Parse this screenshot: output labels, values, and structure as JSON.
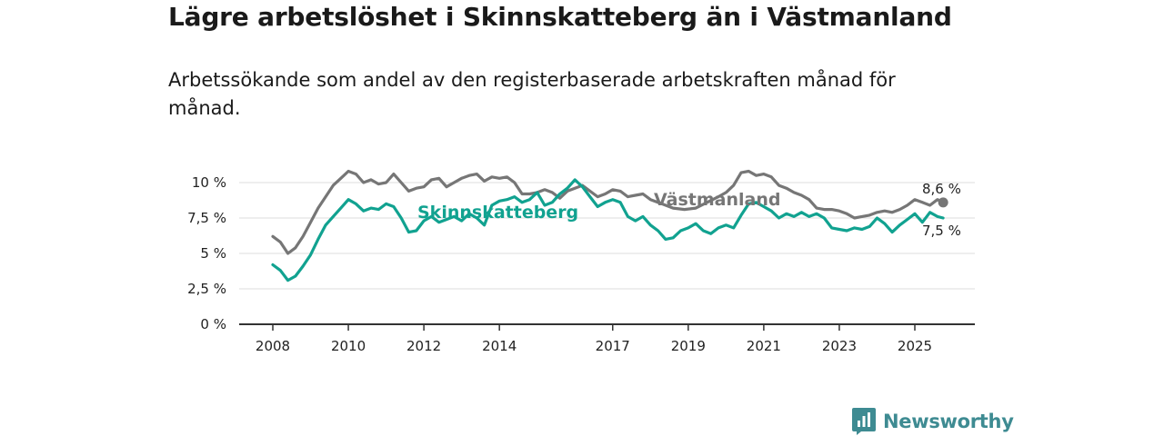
{
  "header": {
    "title": "Lägre arbetslöshet i Skinnskatteberg än i Västmanland",
    "subtitle": "Arbetssökande som andel av den registerbaserade arbetskraften månad för månad."
  },
  "brand": {
    "name": "Newsworthy",
    "icon": "newsworthy-logo-icon"
  },
  "colors": {
    "skinnskatteberg": "#11a290",
    "vastmanland": "#767676",
    "grid": "#dcdcdc",
    "axis": "#333333"
  },
  "chart_data": {
    "type": "line",
    "title": "Lägre arbetslöshet i Skinnskatteberg än i Västmanland",
    "xlabel": "",
    "ylabel": "",
    "xlim": [
      2007.9,
      2025.8
    ],
    "ylim": [
      0,
      10
    ],
    "y_ticks": [
      0,
      2.5,
      5,
      7.5,
      10
    ],
    "y_tick_labels": [
      "0 %",
      "2,5 %",
      "5 %",
      "7,5 %",
      "10 %"
    ],
    "x_ticks": [
      2008,
      2010,
      2012,
      2014,
      2017,
      2019,
      2021,
      2023,
      2025
    ],
    "x_tick_labels": [
      "2008",
      "2010",
      "2012",
      "2014",
      "2017",
      "2019",
      "2021",
      "2023",
      "2025"
    ],
    "series": [
      {
        "name": "Västmanland",
        "end_label": "8,6 %",
        "points": [
          [
            2008.0,
            6.2
          ],
          [
            2008.2,
            5.8
          ],
          [
            2008.4,
            5.0
          ],
          [
            2008.6,
            5.4
          ],
          [
            2008.8,
            6.2
          ],
          [
            2009.0,
            7.2
          ],
          [
            2009.2,
            8.2
          ],
          [
            2009.4,
            9.0
          ],
          [
            2009.6,
            9.8
          ],
          [
            2009.8,
            10.3
          ],
          [
            2010.0,
            10.8
          ],
          [
            2010.2,
            10.6
          ],
          [
            2010.4,
            10.0
          ],
          [
            2010.6,
            10.2
          ],
          [
            2010.8,
            9.9
          ],
          [
            2011.0,
            10.0
          ],
          [
            2011.2,
            10.6
          ],
          [
            2011.4,
            10.0
          ],
          [
            2011.6,
            9.4
          ],
          [
            2011.8,
            9.6
          ],
          [
            2012.0,
            9.7
          ],
          [
            2012.2,
            10.2
          ],
          [
            2012.4,
            10.3
          ],
          [
            2012.6,
            9.7
          ],
          [
            2012.8,
            10.0
          ],
          [
            2013.0,
            10.3
          ],
          [
            2013.2,
            10.5
          ],
          [
            2013.4,
            10.6
          ],
          [
            2013.6,
            10.1
          ],
          [
            2013.8,
            10.4
          ],
          [
            2014.0,
            10.3
          ],
          [
            2014.2,
            10.4
          ],
          [
            2014.4,
            10.0
          ],
          [
            2014.6,
            9.2
          ],
          [
            2014.8,
            9.2
          ],
          [
            2015.0,
            9.3
          ],
          [
            2015.2,
            9.5
          ],
          [
            2015.4,
            9.3
          ],
          [
            2015.6,
            8.9
          ],
          [
            2015.8,
            9.4
          ],
          [
            2016.0,
            9.6
          ],
          [
            2016.2,
            9.8
          ],
          [
            2016.4,
            9.4
          ],
          [
            2016.6,
            9.0
          ],
          [
            2016.8,
            9.2
          ],
          [
            2017.0,
            9.5
          ],
          [
            2017.2,
            9.4
          ],
          [
            2017.4,
            9.0
          ],
          [
            2017.6,
            9.1
          ],
          [
            2017.8,
            9.2
          ],
          [
            2018.0,
            8.8
          ],
          [
            2018.3,
            8.5
          ],
          [
            2018.6,
            8.2
          ],
          [
            2018.9,
            8.1
          ],
          [
            2019.2,
            8.2
          ],
          [
            2019.5,
            8.6
          ],
          [
            2019.8,
            9.0
          ],
          [
            2020.0,
            9.3
          ],
          [
            2020.2,
            9.8
          ],
          [
            2020.4,
            10.7
          ],
          [
            2020.6,
            10.8
          ],
          [
            2020.8,
            10.5
          ],
          [
            2021.0,
            10.6
          ],
          [
            2021.2,
            10.4
          ],
          [
            2021.4,
            9.8
          ],
          [
            2021.6,
            9.6
          ],
          [
            2021.8,
            9.3
          ],
          [
            2022.0,
            9.1
          ],
          [
            2022.2,
            8.8
          ],
          [
            2022.4,
            8.2
          ],
          [
            2022.6,
            8.1
          ],
          [
            2022.8,
            8.1
          ],
          [
            2023.0,
            8.0
          ],
          [
            2023.2,
            7.8
          ],
          [
            2023.4,
            7.5
          ],
          [
            2023.6,
            7.6
          ],
          [
            2023.8,
            7.7
          ],
          [
            2024.0,
            7.9
          ],
          [
            2024.2,
            8.0
          ],
          [
            2024.4,
            7.9
          ],
          [
            2024.6,
            8.1
          ],
          [
            2024.8,
            8.4
          ],
          [
            2025.0,
            8.8
          ],
          [
            2025.2,
            8.6
          ],
          [
            2025.4,
            8.4
          ],
          [
            2025.6,
            8.8
          ],
          [
            2025.75,
            8.6
          ]
        ]
      },
      {
        "name": "Skinnskatteberg",
        "end_label": "7,5 %",
        "points": [
          [
            2008.0,
            4.2
          ],
          [
            2008.2,
            3.8
          ],
          [
            2008.4,
            3.1
          ],
          [
            2008.6,
            3.4
          ],
          [
            2008.8,
            4.1
          ],
          [
            2009.0,
            4.9
          ],
          [
            2009.2,
            6.0
          ],
          [
            2009.4,
            7.0
          ],
          [
            2009.6,
            7.6
          ],
          [
            2009.8,
            8.2
          ],
          [
            2010.0,
            8.8
          ],
          [
            2010.2,
            8.5
          ],
          [
            2010.4,
            8.0
          ],
          [
            2010.6,
            8.2
          ],
          [
            2010.8,
            8.1
          ],
          [
            2011.0,
            8.5
          ],
          [
            2011.2,
            8.3
          ],
          [
            2011.4,
            7.5
          ],
          [
            2011.6,
            6.5
          ],
          [
            2011.8,
            6.6
          ],
          [
            2012.0,
            7.3
          ],
          [
            2012.2,
            7.6
          ],
          [
            2012.4,
            7.2
          ],
          [
            2012.6,
            7.4
          ],
          [
            2012.8,
            7.6
          ],
          [
            2013.0,
            7.3
          ],
          [
            2013.2,
            7.8
          ],
          [
            2013.4,
            7.5
          ],
          [
            2013.6,
            7.0
          ],
          [
            2013.8,
            8.4
          ],
          [
            2014.0,
            8.7
          ],
          [
            2014.2,
            8.8
          ],
          [
            2014.4,
            9.0
          ],
          [
            2014.6,
            8.6
          ],
          [
            2014.8,
            8.8
          ],
          [
            2015.0,
            9.3
          ],
          [
            2015.2,
            8.4
          ],
          [
            2015.4,
            8.6
          ],
          [
            2015.6,
            9.2
          ],
          [
            2015.8,
            9.6
          ],
          [
            2016.0,
            10.2
          ],
          [
            2016.2,
            9.7
          ],
          [
            2016.4,
            9.0
          ],
          [
            2016.6,
            8.3
          ],
          [
            2016.8,
            8.6
          ],
          [
            2017.0,
            8.8
          ],
          [
            2017.2,
            8.6
          ],
          [
            2017.4,
            7.6
          ],
          [
            2017.6,
            7.3
          ],
          [
            2017.8,
            7.6
          ],
          [
            2018.0,
            7.0
          ],
          [
            2018.2,
            6.6
          ],
          [
            2018.4,
            6.0
          ],
          [
            2018.6,
            6.1
          ],
          [
            2018.8,
            6.6
          ],
          [
            2019.0,
            6.8
          ],
          [
            2019.2,
            7.1
          ],
          [
            2019.4,
            6.6
          ],
          [
            2019.6,
            6.4
          ],
          [
            2019.8,
            6.8
          ],
          [
            2020.0,
            7.0
          ],
          [
            2020.2,
            6.8
          ],
          [
            2020.4,
            7.7
          ],
          [
            2020.6,
            8.5
          ],
          [
            2020.8,
            8.6
          ],
          [
            2021.0,
            8.3
          ],
          [
            2021.2,
            8.0
          ],
          [
            2021.4,
            7.5
          ],
          [
            2021.6,
            7.8
          ],
          [
            2021.8,
            7.6
          ],
          [
            2022.0,
            7.9
          ],
          [
            2022.2,
            7.6
          ],
          [
            2022.4,
            7.8
          ],
          [
            2022.6,
            7.5
          ],
          [
            2022.8,
            6.8
          ],
          [
            2023.0,
            6.7
          ],
          [
            2023.2,
            6.6
          ],
          [
            2023.4,
            6.8
          ],
          [
            2023.6,
            6.7
          ],
          [
            2023.8,
            6.9
          ],
          [
            2024.0,
            7.5
          ],
          [
            2024.2,
            7.1
          ],
          [
            2024.4,
            6.5
          ],
          [
            2024.6,
            7.0
          ],
          [
            2024.8,
            7.4
          ],
          [
            2025.0,
            7.8
          ],
          [
            2025.2,
            7.2
          ],
          [
            2025.4,
            7.9
          ],
          [
            2025.6,
            7.6
          ],
          [
            2025.75,
            7.5
          ]
        ]
      }
    ]
  }
}
